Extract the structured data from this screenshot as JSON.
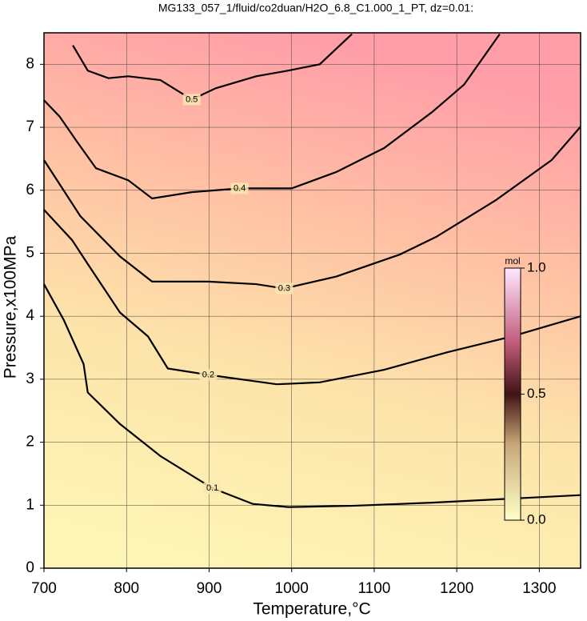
{
  "chart_data": {
    "type": "contour",
    "title": "MG133_057_1/fluid/co2duan/H2O_6.8_C1.000_1_PT, dz=0.01:",
    "x_label": "Temperature,°C",
    "y_label": "Pressure,x100MPa",
    "xlim": [
      700,
      1350
    ],
    "ylim": [
      0,
      8.5
    ],
    "xticks": [
      700,
      800,
      900,
      1000,
      1100,
      1200,
      1300
    ],
    "yticks": [
      0,
      1,
      2,
      3,
      4,
      5,
      6,
      7,
      8
    ],
    "grid": true,
    "contours": [
      {
        "level": 0.5,
        "x": [
          735,
          753,
          778,
          802,
          841,
          879,
          908,
          957,
          996,
          1034,
          1073
        ],
        "y": [
          8.3,
          7.9,
          7.78,
          7.81,
          7.75,
          7.44,
          7.62,
          7.81,
          7.9,
          8.0,
          8.48
        ]
      },
      {
        "level": 0.4,
        "x": [
          700,
          719,
          739,
          763,
          802,
          831,
          879,
          937,
          1000,
          1054,
          1112,
          1170,
          1209,
          1252
        ],
        "y": [
          7.43,
          7.17,
          6.79,
          6.35,
          6.16,
          5.87,
          5.97,
          6.03,
          6.03,
          6.29,
          6.67,
          7.24,
          7.68,
          8.48
        ]
      },
      {
        "level": 0.3,
        "x": [
          700,
          744,
          792,
          831,
          899,
          957,
          991,
          1054,
          1131,
          1175,
          1247,
          1315,
          1350
        ],
        "y": [
          6.48,
          5.59,
          4.95,
          4.55,
          4.55,
          4.51,
          4.44,
          4.63,
          4.98,
          5.26,
          5.84,
          6.48,
          7.01
        ]
      },
      {
        "level": 0.2,
        "x": [
          700,
          734,
          753,
          792,
          826,
          850,
          899,
          982,
          1034,
          1112,
          1189,
          1267,
          1350
        ],
        "y": [
          5.69,
          5.21,
          4.83,
          4.06,
          3.68,
          3.17,
          3.07,
          2.92,
          2.95,
          3.15,
          3.43,
          3.68,
          4.0
        ]
      },
      {
        "level": 0.1,
        "x": [
          700,
          724,
          748,
          753,
          792,
          841,
          904,
          953,
          996,
          1073,
          1170,
          1350
        ],
        "y": [
          4.51,
          3.94,
          3.24,
          2.79,
          2.29,
          1.78,
          1.27,
          1.02,
          0.97,
          0.99,
          1.04,
          1.16
        ]
      }
    ],
    "colorbar": {
      "label": "mol",
      "lim": [
        0,
        1
      ],
      "ticks": [
        {
          "value": 0,
          "label": "0.0"
        },
        {
          "value": 0.5,
          "label": "0.5"
        },
        {
          "value": 1,
          "label": "1.0"
        }
      ]
    }
  }
}
